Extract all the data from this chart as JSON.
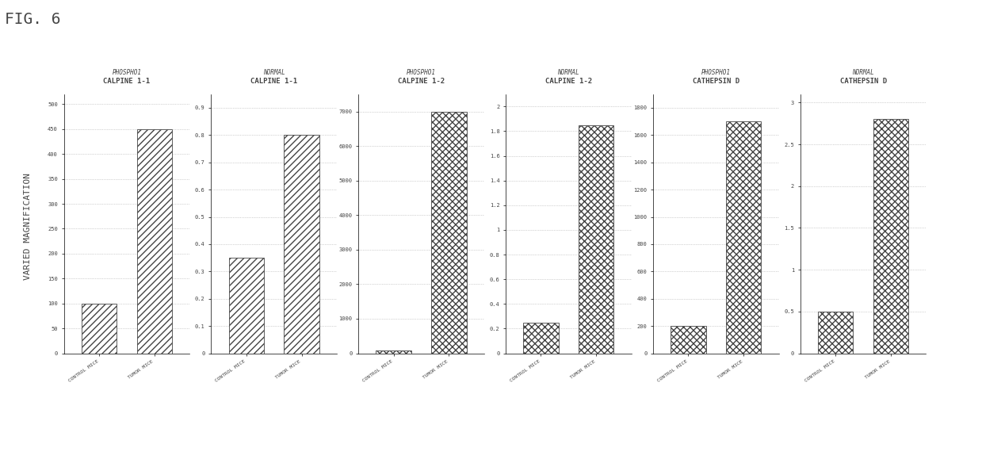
{
  "fig_title": "FIG. 6",
  "ylabel": "VARIED MAGNIFICATION",
  "panels": [
    {
      "title": "CALPINE 1-1",
      "subtitle": "PHOSPHO1",
      "yticks": [
        0,
        50,
        100,
        150,
        200,
        250,
        300,
        350,
        400,
        450,
        500
      ],
      "ymax": 520,
      "bar_values": [
        100,
        450
      ],
      "hatch": "////"
    },
    {
      "title": "CALPINE 1-1",
      "subtitle": "NORMAL",
      "yticks": [
        0,
        0.1,
        0.2,
        0.3,
        0.4,
        0.5,
        0.6,
        0.7,
        0.8,
        0.9
      ],
      "ymax": 0.95,
      "bar_values": [
        0.35,
        0.8
      ],
      "hatch": "////"
    },
    {
      "title": "CALPINE 1-2",
      "subtitle": "PHOSPHO1",
      "yticks": [
        0,
        1000,
        2000,
        3000,
        4000,
        5000,
        6000,
        7000
      ],
      "ymax": 7500,
      "bar_values": [
        80,
        7000
      ],
      "hatch": "xxxx"
    },
    {
      "title": "CALPINE 1-2",
      "subtitle": "NORMAL",
      "yticks": [
        0,
        0.2,
        0.4,
        0.6,
        0.8,
        1.0,
        1.2,
        1.4,
        1.6,
        1.8,
        2.0
      ],
      "ymax": 2.1,
      "bar_values": [
        0.25,
        1.85
      ],
      "hatch": "xxxx"
    },
    {
      "title": "CATHEPSIN D",
      "subtitle": "PHOSPHO1",
      "yticks": [
        0,
        200,
        400,
        600,
        800,
        1000,
        1200,
        1400,
        1600,
        1800
      ],
      "ymax": 1900,
      "bar_values": [
        200,
        1700
      ],
      "hatch": "xxxx"
    },
    {
      "title": "CATHEPSIN D",
      "subtitle": "NORMAL",
      "yticks": [
        0,
        0.5,
        1.0,
        1.5,
        2.0,
        2.5,
        3.0
      ],
      "ymax": 3.1,
      "bar_values": [
        0.5,
        2.8
      ],
      "hatch": "xxxx"
    }
  ],
  "bar_labels": [
    "CONTROL MICE",
    "TUMOR MICE"
  ],
  "background_color": "#ffffff",
  "text_color": "#444444",
  "grid_color": "#aaaaaa",
  "font_family": "monospace",
  "fig_title_fontsize": 14,
  "title_fontsize": 6.5,
  "subtitle_fontsize": 5.5,
  "ytick_fontsize": 5,
  "xtick_fontsize": 4.5,
  "ylabel_fontsize": 8
}
